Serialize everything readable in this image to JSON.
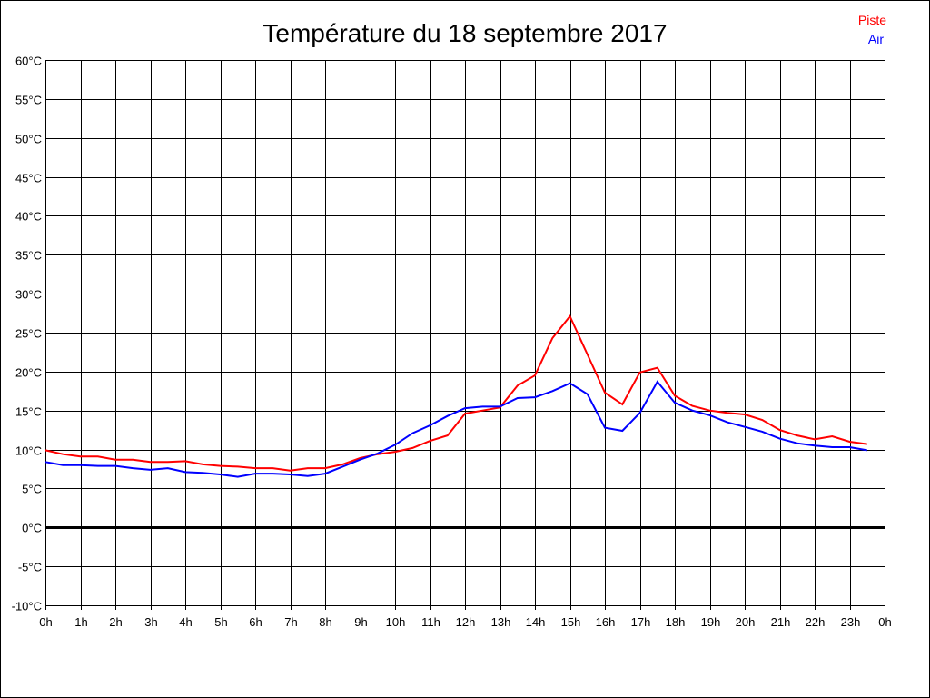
{
  "chart_data": {
    "type": "line",
    "title": "Température du 18 septembre 2017",
    "xlabel": "",
    "ylabel": "",
    "xlim": [
      0,
      24
    ],
    "ylim": [
      -10,
      60
    ],
    "grid": true,
    "legend_placement": "top-right",
    "x_tick_labels": [
      "0h",
      "1h",
      "2h",
      "3h",
      "4h",
      "5h",
      "6h",
      "7h",
      "8h",
      "9h",
      "10h",
      "11h",
      "12h",
      "13h",
      "14h",
      "15h",
      "16h",
      "17h",
      "18h",
      "19h",
      "20h",
      "21h",
      "22h",
      "23h",
      "0h"
    ],
    "y_tick_labels": [
      "60°C",
      "55°C",
      "50°C",
      "45°C",
      "40°C",
      "35°C",
      "30°C",
      "25°C",
      "20°C",
      "15°C",
      "10°C",
      "5°C",
      "0°C",
      "-5°C",
      "-10°C"
    ],
    "y_ticks": [
      60,
      55,
      50,
      45,
      40,
      35,
      30,
      25,
      20,
      15,
      10,
      5,
      0,
      -5,
      -10
    ],
    "x": [
      0,
      0.5,
      1,
      1.5,
      2,
      2.5,
      3,
      3.5,
      4,
      4.5,
      5,
      5.5,
      6,
      6.5,
      7,
      7.5,
      8,
      8.5,
      9,
      9.5,
      10,
      10.5,
      11,
      11.5,
      12,
      12.5,
      13,
      13.5,
      14,
      14.5,
      15,
      15.5,
      16,
      16.5,
      17,
      17.5,
      18,
      18.5,
      19,
      19.5,
      20,
      20.5,
      21,
      21.5,
      22,
      22.5,
      23,
      23.5
    ],
    "series": [
      {
        "name": "Piste",
        "color": "#ff0000",
        "values": [
          9.9,
          9.4,
          9.1,
          9.1,
          8.7,
          8.7,
          8.4,
          8.4,
          8.5,
          8.1,
          7.9,
          7.8,
          7.6,
          7.6,
          7.3,
          7.6,
          7.6,
          8.1,
          8.9,
          9.4,
          9.7,
          10.2,
          11.1,
          11.8,
          14.6,
          15.0,
          15.4,
          18.2,
          19.5,
          24.3,
          27.1,
          22.2,
          17.3,
          15.8,
          19.9,
          20.5,
          16.9,
          15.6,
          15.0,
          14.7,
          14.5,
          13.8,
          12.5,
          11.8,
          11.3,
          11.7,
          11.0,
          10.7
        ]
      },
      {
        "name": "Air",
        "color": "#0000ff",
        "values": [
          8.4,
          8.0,
          8.0,
          7.9,
          7.9,
          7.6,
          7.4,
          7.6,
          7.1,
          7.0,
          6.8,
          6.5,
          6.9,
          6.9,
          6.8,
          6.6,
          6.9,
          7.8,
          8.7,
          9.5,
          10.6,
          12.1,
          13.1,
          14.3,
          15.3,
          15.5,
          15.5,
          16.6,
          16.7,
          17.5,
          18.5,
          17.1,
          12.8,
          12.4,
          14.7,
          18.7,
          16.0,
          15.0,
          14.4,
          13.5,
          12.9,
          12.3,
          11.4,
          10.8,
          10.5,
          10.3,
          10.3,
          9.9
        ]
      }
    ]
  }
}
